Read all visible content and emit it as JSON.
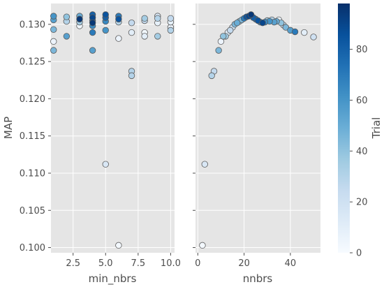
{
  "chart_data": [
    {
      "type": "scatter",
      "xlabel": "min_nbrs",
      "ylabel": "MAP",
      "xlim": [
        0.8,
        10.3
      ],
      "ylim": [
        0.0993,
        0.1328
      ],
      "xticks": [
        "2.5",
        "5.0",
        "7.5",
        "10.0"
      ],
      "yticks": [
        "0.100",
        "0.105",
        "0.110",
        "0.115",
        "0.120",
        "0.125",
        "0.130"
      ],
      "grid": true,
      "points": [
        {
          "x": 1,
          "y": 0.1311,
          "trial": 60
        },
        {
          "x": 1,
          "y": 0.1306,
          "trial": 55
        },
        {
          "x": 1,
          "y": 0.1293,
          "trial": 45
        },
        {
          "x": 1,
          "y": 0.1277,
          "trial": 5
        },
        {
          "x": 1,
          "y": 0.1265,
          "trial": 45
        },
        {
          "x": 2,
          "y": 0.131,
          "trial": 40
        },
        {
          "x": 2,
          "y": 0.1304,
          "trial": 30
        },
        {
          "x": 2,
          "y": 0.1284,
          "trial": 55
        },
        {
          "x": 3,
          "y": 0.1311,
          "trial": 50
        },
        {
          "x": 3,
          "y": 0.1307,
          "trial": 95
        },
        {
          "x": 3,
          "y": 0.1303,
          "trial": 35
        },
        {
          "x": 3,
          "y": 0.1298,
          "trial": 3
        },
        {
          "x": 4,
          "y": 0.1313,
          "trial": 80
        },
        {
          "x": 4,
          "y": 0.1309,
          "trial": 90
        },
        {
          "x": 4,
          "y": 0.1305,
          "trial": 75
        },
        {
          "x": 4,
          "y": 0.1302,
          "trial": 95
        },
        {
          "x": 4,
          "y": 0.1298,
          "trial": 65
        },
        {
          "x": 4,
          "y": 0.1289,
          "trial": 70
        },
        {
          "x": 4,
          "y": 0.1265,
          "trial": 55
        },
        {
          "x": 5,
          "y": 0.1313,
          "trial": 85
        },
        {
          "x": 5,
          "y": 0.1309,
          "trial": 80
        },
        {
          "x": 5,
          "y": 0.1304,
          "trial": 65
        },
        {
          "x": 5,
          "y": 0.1292,
          "trial": 60
        },
        {
          "x": 5,
          "y": 0.1112,
          "trial": 15
        },
        {
          "x": 6,
          "y": 0.1311,
          "trial": 70
        },
        {
          "x": 6,
          "y": 0.1307,
          "trial": 85
        },
        {
          "x": 6,
          "y": 0.1303,
          "trial": 30
        },
        {
          "x": 6,
          "y": 0.1281,
          "trial": 5
        },
        {
          "x": 6,
          "y": 0.1003,
          "trial": 2
        },
        {
          "x": 7,
          "y": 0.1302,
          "trial": 25
        },
        {
          "x": 7,
          "y": 0.1289,
          "trial": 10
        },
        {
          "x": 7,
          "y": 0.1237,
          "trial": 30
        },
        {
          "x": 7,
          "y": 0.1231,
          "trial": 30
        },
        {
          "x": 8,
          "y": 0.1308,
          "trial": 35
        },
        {
          "x": 8,
          "y": 0.1305,
          "trial": 25
        },
        {
          "x": 8,
          "y": 0.1289,
          "trial": 3
        },
        {
          "x": 8,
          "y": 0.1284,
          "trial": 10
        },
        {
          "x": 9,
          "y": 0.1311,
          "trial": 15
        },
        {
          "x": 9,
          "y": 0.1308,
          "trial": 30
        },
        {
          "x": 9,
          "y": 0.1302,
          "trial": 8
        },
        {
          "x": 9,
          "y": 0.1284,
          "trial": 35
        },
        {
          "x": 10,
          "y": 0.1308,
          "trial": 25
        },
        {
          "x": 10,
          "y": 0.1303,
          "trial": 8
        },
        {
          "x": 10,
          "y": 0.1296,
          "trial": 5
        },
        {
          "x": 10,
          "y": 0.1292,
          "trial": 30
        }
      ]
    },
    {
      "type": "scatter",
      "xlabel": "nnbrs",
      "xlim": [
        -1,
        53
      ],
      "ylim": [
        0.0993,
        0.1328
      ],
      "xticks": [
        "0",
        "20",
        "40"
      ],
      "grid": true,
      "points": [
        {
          "x": 2,
          "y": 0.1003,
          "trial": 2
        },
        {
          "x": 3,
          "y": 0.1112,
          "trial": 15
        },
        {
          "x": 6,
          "y": 0.1231,
          "trial": 30
        },
        {
          "x": 7,
          "y": 0.1237,
          "trial": 25
        },
        {
          "x": 9,
          "y": 0.1265,
          "trial": 45
        },
        {
          "x": 10,
          "y": 0.1277,
          "trial": 5
        },
        {
          "x": 11,
          "y": 0.1284,
          "trial": 40
        },
        {
          "x": 12,
          "y": 0.1284,
          "trial": 35
        },
        {
          "x": 13,
          "y": 0.1289,
          "trial": 10
        },
        {
          "x": 14,
          "y": 0.1292,
          "trial": 25
        },
        {
          "x": 15,
          "y": 0.1296,
          "trial": 20
        },
        {
          "x": 16,
          "y": 0.13,
          "trial": 45
        },
        {
          "x": 17,
          "y": 0.1302,
          "trial": 50
        },
        {
          "x": 18,
          "y": 0.1304,
          "trial": 40
        },
        {
          "x": 19,
          "y": 0.1306,
          "trial": 45
        },
        {
          "x": 20,
          "y": 0.1308,
          "trial": 70
        },
        {
          "x": 21,
          "y": 0.131,
          "trial": 85
        },
        {
          "x": 22,
          "y": 0.1311,
          "trial": 90
        },
        {
          "x": 23,
          "y": 0.1313,
          "trial": 95
        },
        {
          "x": 24,
          "y": 0.1309,
          "trial": 80
        },
        {
          "x": 25,
          "y": 0.1307,
          "trial": 75
        },
        {
          "x": 26,
          "y": 0.1305,
          "trial": 85
        },
        {
          "x": 27,
          "y": 0.1303,
          "trial": 60
        },
        {
          "x": 28,
          "y": 0.1302,
          "trial": 90
        },
        {
          "x": 29,
          "y": 0.1303,
          "trial": 65
        },
        {
          "x": 30,
          "y": 0.1305,
          "trial": 35
        },
        {
          "x": 31,
          "y": 0.1304,
          "trial": 60
        },
        {
          "x": 32,
          "y": 0.1306,
          "trial": 30
        },
        {
          "x": 33,
          "y": 0.1303,
          "trial": 55
        },
        {
          "x": 34,
          "y": 0.1304,
          "trial": 50
        },
        {
          "x": 35,
          "y": 0.1306,
          "trial": 8
        },
        {
          "x": 36,
          "y": 0.1302,
          "trial": 40
        },
        {
          "x": 37,
          "y": 0.1299,
          "trial": 25
        },
        {
          "x": 38,
          "y": 0.1296,
          "trial": 45
        },
        {
          "x": 40,
          "y": 0.1292,
          "trial": 55
        },
        {
          "x": 42,
          "y": 0.129,
          "trial": 70
        },
        {
          "x": 46,
          "y": 0.1289,
          "trial": 10
        },
        {
          "x": 50,
          "y": 0.1283,
          "trial": 20
        }
      ]
    }
  ],
  "colorbar": {
    "label": "Trial",
    "range": [
      0,
      98
    ],
    "ticks": [
      "0",
      "20",
      "40",
      "60",
      "80"
    ],
    "colors": [
      "#f7fbff",
      "#deebf7",
      "#c6dbef",
      "#9ecae1",
      "#6baed6",
      "#4292c6",
      "#2171b5",
      "#08519c",
      "#08306b"
    ]
  },
  "style": {
    "panel_bg": "#e5e5e5",
    "grid_color": "#ffffff",
    "marker_edge": "#5a5a5a"
  }
}
